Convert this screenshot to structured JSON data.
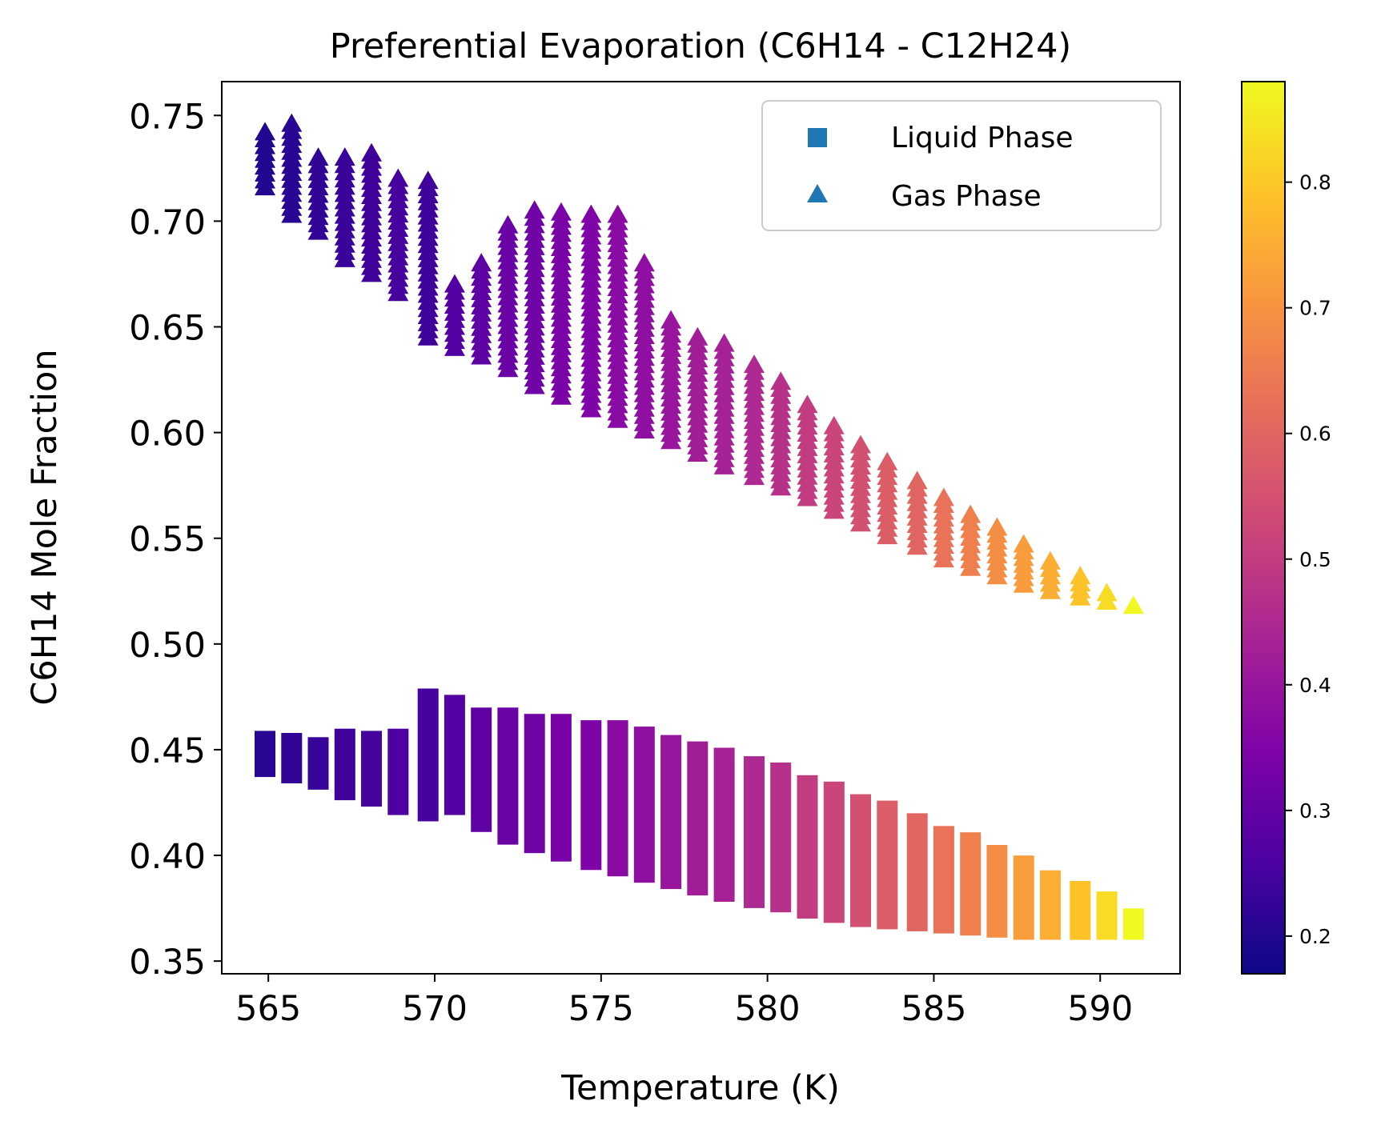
{
  "chart_data": {
    "type": "scatter",
    "title": "Preferential Evaporation (C6H14 - C12H24)",
    "xlabel": "Temperature (K)",
    "ylabel": "C6H14 Mole Fraction",
    "xlim": [
      563.6,
      592.4
    ],
    "ylim": [
      0.344,
      0.766
    ],
    "xticks": [
      565,
      570,
      575,
      580,
      585,
      590
    ],
    "xtick_labels": [
      "565",
      "570",
      "575",
      "580",
      "585",
      "590"
    ],
    "yticks": [
      0.35,
      0.4,
      0.45,
      0.5,
      0.55,
      0.6,
      0.65,
      0.7,
      0.75
    ],
    "ytick_labels": [
      "0.35",
      "0.40",
      "0.45",
      "0.50",
      "0.55",
      "0.60",
      "0.65",
      "0.70",
      "0.75"
    ],
    "grid": false,
    "legend_position": "top-right",
    "colormap": "plasma",
    "colorbar": {
      "range": [
        0.17,
        0.88
      ],
      "ticks": [
        0.2,
        0.3,
        0.4,
        0.5,
        0.6,
        0.7,
        0.8
      ],
      "tick_labels": [
        "0.2",
        "0.3",
        "0.4",
        "0.5",
        "0.6",
        "0.7",
        "0.8"
      ]
    },
    "series": [
      {
        "name": "Liquid Phase",
        "marker": "square",
        "legend_color": "#1f77b4",
        "columns": [
          {
            "x": 564.9,
            "y_min": 0.442,
            "y_max": 0.454,
            "c": 0.21
          },
          {
            "x": 565.7,
            "y_min": 0.439,
            "y_max": 0.453,
            "c": 0.22
          },
          {
            "x": 566.5,
            "y_min": 0.436,
            "y_max": 0.451,
            "c": 0.23
          },
          {
            "x": 567.3,
            "y_min": 0.431,
            "y_max": 0.455,
            "c": 0.24
          },
          {
            "x": 568.1,
            "y_min": 0.428,
            "y_max": 0.454,
            "c": 0.25
          },
          {
            "x": 568.9,
            "y_min": 0.424,
            "y_max": 0.455,
            "c": 0.26
          },
          {
            "x": 569.8,
            "y_min": 0.421,
            "y_max": 0.474,
            "c": 0.25
          },
          {
            "x": 570.6,
            "y_min": 0.424,
            "y_max": 0.471,
            "c": 0.27
          },
          {
            "x": 571.4,
            "y_min": 0.416,
            "y_max": 0.465,
            "c": 0.29
          },
          {
            "x": 572.2,
            "y_min": 0.41,
            "y_max": 0.465,
            "c": 0.31
          },
          {
            "x": 573.0,
            "y_min": 0.406,
            "y_max": 0.462,
            "c": 0.32
          },
          {
            "x": 573.8,
            "y_min": 0.402,
            "y_max": 0.462,
            "c": 0.34
          },
          {
            "x": 574.7,
            "y_min": 0.398,
            "y_max": 0.459,
            "c": 0.35
          },
          {
            "x": 575.5,
            "y_min": 0.395,
            "y_max": 0.459,
            "c": 0.37
          },
          {
            "x": 576.3,
            "y_min": 0.392,
            "y_max": 0.456,
            "c": 0.38
          },
          {
            "x": 577.1,
            "y_min": 0.389,
            "y_max": 0.452,
            "c": 0.4
          },
          {
            "x": 577.9,
            "y_min": 0.386,
            "y_max": 0.449,
            "c": 0.42
          },
          {
            "x": 578.7,
            "y_min": 0.383,
            "y_max": 0.446,
            "c": 0.43
          },
          {
            "x": 579.6,
            "y_min": 0.38,
            "y_max": 0.442,
            "c": 0.45
          },
          {
            "x": 580.4,
            "y_min": 0.378,
            "y_max": 0.439,
            "c": 0.47
          },
          {
            "x": 581.2,
            "y_min": 0.375,
            "y_max": 0.433,
            "c": 0.5
          },
          {
            "x": 582.0,
            "y_min": 0.373,
            "y_max": 0.43,
            "c": 0.52
          },
          {
            "x": 582.8,
            "y_min": 0.371,
            "y_max": 0.424,
            "c": 0.55
          },
          {
            "x": 583.6,
            "y_min": 0.37,
            "y_max": 0.421,
            "c": 0.58
          },
          {
            "x": 584.5,
            "y_min": 0.369,
            "y_max": 0.415,
            "c": 0.6
          },
          {
            "x": 585.3,
            "y_min": 0.368,
            "y_max": 0.409,
            "c": 0.63
          },
          {
            "x": 586.1,
            "y_min": 0.367,
            "y_max": 0.406,
            "c": 0.66
          },
          {
            "x": 586.9,
            "y_min": 0.366,
            "y_max": 0.4,
            "c": 0.69
          },
          {
            "x": 587.7,
            "y_min": 0.365,
            "y_max": 0.395,
            "c": 0.72
          },
          {
            "x": 588.5,
            "y_min": 0.365,
            "y_max": 0.388,
            "c": 0.75
          },
          {
            "x": 589.4,
            "y_min": 0.365,
            "y_max": 0.383,
            "c": 0.79
          },
          {
            "x": 590.2,
            "y_min": 0.365,
            "y_max": 0.378,
            "c": 0.83
          },
          {
            "x": 591.0,
            "y_min": 0.365,
            "y_max": 0.37,
            "c": 0.88
          }
        ]
      },
      {
        "name": "Gas Phase",
        "marker": "triangle",
        "legend_color": "#1f77b4",
        "columns": [
          {
            "x": 564.9,
            "y_min": 0.716,
            "y_max": 0.742,
            "c": 0.2
          },
          {
            "x": 565.7,
            "y_min": 0.703,
            "y_max": 0.746,
            "c": 0.21
          },
          {
            "x": 566.5,
            "y_min": 0.695,
            "y_max": 0.73,
            "c": 0.22
          },
          {
            "x": 567.3,
            "y_min": 0.682,
            "y_max": 0.73,
            "c": 0.23
          },
          {
            "x": 568.1,
            "y_min": 0.675,
            "y_max": 0.732,
            "c": 0.24
          },
          {
            "x": 568.9,
            "y_min": 0.666,
            "y_max": 0.72,
            "c": 0.25
          },
          {
            "x": 569.8,
            "y_min": 0.645,
            "y_max": 0.719,
            "c": 0.24
          },
          {
            "x": 570.6,
            "y_min": 0.64,
            "y_max": 0.67,
            "c": 0.27
          },
          {
            "x": 571.4,
            "y_min": 0.636,
            "y_max": 0.68,
            "c": 0.29
          },
          {
            "x": 572.2,
            "y_min": 0.63,
            "y_max": 0.698,
            "c": 0.31
          },
          {
            "x": 573.0,
            "y_min": 0.622,
            "y_max": 0.705,
            "c": 0.32
          },
          {
            "x": 573.8,
            "y_min": 0.617,
            "y_max": 0.704,
            "c": 0.34
          },
          {
            "x": 574.7,
            "y_min": 0.611,
            "y_max": 0.703,
            "c": 0.35
          },
          {
            "x": 575.5,
            "y_min": 0.606,
            "y_max": 0.703,
            "c": 0.37
          },
          {
            "x": 576.3,
            "y_min": 0.601,
            "y_max": 0.68,
            "c": 0.38
          },
          {
            "x": 577.1,
            "y_min": 0.596,
            "y_max": 0.653,
            "c": 0.4
          },
          {
            "x": 577.9,
            "y_min": 0.59,
            "y_max": 0.645,
            "c": 0.42
          },
          {
            "x": 578.7,
            "y_min": 0.584,
            "y_max": 0.642,
            "c": 0.43
          },
          {
            "x": 579.6,
            "y_min": 0.579,
            "y_max": 0.632,
            "c": 0.45
          },
          {
            "x": 580.4,
            "y_min": 0.574,
            "y_max": 0.624,
            "c": 0.47
          },
          {
            "x": 581.2,
            "y_min": 0.569,
            "y_max": 0.613,
            "c": 0.5
          },
          {
            "x": 582.0,
            "y_min": 0.563,
            "y_max": 0.603,
            "c": 0.52
          },
          {
            "x": 582.8,
            "y_min": 0.557,
            "y_max": 0.594,
            "c": 0.55
          },
          {
            "x": 583.6,
            "y_min": 0.551,
            "y_max": 0.586,
            "c": 0.58
          },
          {
            "x": 584.5,
            "y_min": 0.546,
            "y_max": 0.577,
            "c": 0.6
          },
          {
            "x": 585.3,
            "y_min": 0.54,
            "y_max": 0.569,
            "c": 0.63
          },
          {
            "x": 586.1,
            "y_min": 0.536,
            "y_max": 0.561,
            "c": 0.66
          },
          {
            "x": 586.9,
            "y_min": 0.532,
            "y_max": 0.555,
            "c": 0.69
          },
          {
            "x": 587.7,
            "y_min": 0.528,
            "y_max": 0.547,
            "c": 0.72
          },
          {
            "x": 588.5,
            "y_min": 0.525,
            "y_max": 0.539,
            "c": 0.75
          },
          {
            "x": 589.4,
            "y_min": 0.522,
            "y_max": 0.532,
            "c": 0.79
          },
          {
            "x": 590.2,
            "y_min": 0.52,
            "y_max": 0.524,
            "c": 0.83
          },
          {
            "x": 591.0,
            "y_min": 0.518,
            "y_max": 0.518,
            "c": 0.88
          }
        ]
      }
    ]
  }
}
